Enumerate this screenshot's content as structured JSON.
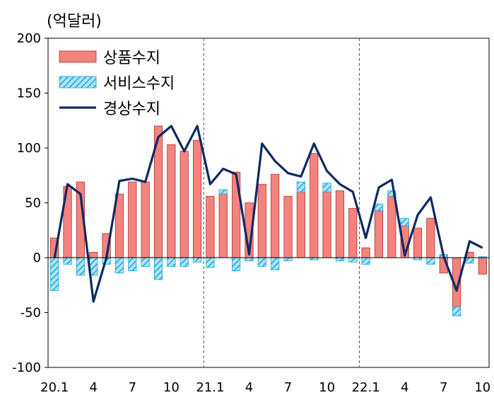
{
  "chart_data": {
    "type": "bar",
    "unit_label": "(억달러)",
    "xlabel": "",
    "ylabel": "",
    "ylim": [
      -100,
      200
    ],
    "yticks": [
      -100,
      -50,
      0,
      50,
      100,
      150,
      200
    ],
    "xtick_labels": [
      "20.1",
      "4",
      "7",
      "10",
      "21.1",
      "4",
      "7",
      "10",
      "22.1",
      "4",
      "7",
      "10"
    ],
    "categories": [
      "20.1",
      "20.2",
      "20.3",
      "20.4",
      "20.5",
      "20.6",
      "20.7",
      "20.8",
      "20.9",
      "20.10",
      "20.11",
      "20.12",
      "21.1",
      "21.2",
      "21.3",
      "21.4",
      "21.5",
      "21.6",
      "21.7",
      "21.8",
      "21.9",
      "21.10",
      "21.11",
      "21.12",
      "22.1",
      "22.2",
      "22.3",
      "22.4",
      "22.5",
      "22.6",
      "22.7",
      "22.8",
      "22.9",
      "22.10"
    ],
    "year_dividers": [
      "21.1",
      "22.1"
    ],
    "legend_position": "top-left",
    "series": [
      {
        "name": "상품수지",
        "kind": "bar",
        "color": "#f4837d",
        "values": [
          18,
          65,
          69,
          5,
          22,
          58,
          69,
          69,
          120,
          103,
          97,
          107,
          56,
          58,
          78,
          50,
          67,
          76,
          56,
          60,
          95,
          60,
          61,
          45,
          9,
          43,
          56,
          29,
          27,
          36,
          -14,
          -45,
          5,
          -15
        ]
      },
      {
        "name": "서비스수지",
        "kind": "bar",
        "color": "#33b5e5",
        "values": [
          -30,
          -6,
          -16,
          -16,
          -6,
          -14,
          -12,
          -8,
          -20,
          -8,
          -8,
          -4,
          -9,
          4,
          -12,
          -3,
          -8,
          -11,
          -3,
          9,
          -2,
          8,
          -3,
          -4,
          -6,
          6,
          5,
          7,
          -2,
          -6,
          3,
          -8,
          -5,
          1
        ]
      },
      {
        "name": "경상수지",
        "kind": "line",
        "color": "#0d2a63",
        "values": [
          0,
          67,
          58,
          -40,
          0,
          70,
          72,
          69,
          110,
          120,
          97,
          120,
          67,
          81,
          76,
          3,
          104,
          88,
          77,
          74,
          104,
          79,
          67,
          60,
          18,
          64,
          71,
          2,
          39,
          55,
          1,
          -30,
          15,
          9
        ]
      }
    ]
  }
}
